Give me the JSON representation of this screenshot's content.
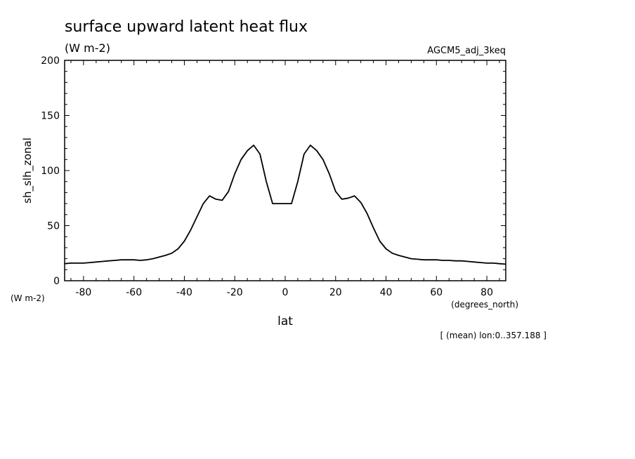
{
  "chart_data": {
    "type": "line",
    "title": "surface upward latent heat flux",
    "subtitle": "(W m-2)",
    "dataset": "AGCM5_adj_3keq",
    "ylabel": "sh_slh_zonal",
    "yunits": "(W m-2)",
    "xlabel": "lat",
    "xunits": "(degrees_north)",
    "footnote": "[ (mean) lon:0..357.188 ]",
    "xlim": [
      -87.5,
      87.5
    ],
    "ylim": [
      0,
      200
    ],
    "x_ticks": [
      -80,
      -60,
      -40,
      -20,
      0,
      20,
      40,
      60,
      80
    ],
    "x_tick_labels": [
      "-80",
      "-60",
      "-40",
      "-20",
      "0",
      "20",
      "40",
      "60",
      "80"
    ],
    "y_ticks": [
      0,
      50,
      100,
      150,
      200
    ],
    "y_tick_labels": [
      "0",
      "50",
      "100",
      "150",
      "200"
    ],
    "grid": false,
    "series": [
      {
        "x": [
          -87.5,
          -85,
          -82.5,
          -80,
          -77.5,
          -75,
          -72.5,
          -70,
          -67.5,
          -65,
          -62.5,
          -60,
          -57.5,
          -55,
          -52.5,
          -50,
          -47.5,
          -45,
          -42.5,
          -40,
          -37.5,
          -35,
          -32.5,
          -30,
          -27.5,
          -25,
          -22.5,
          -20,
          -17.5,
          -15,
          -12.5,
          -10,
          -7.5,
          -5,
          -2.5,
          0,
          2.5,
          5,
          7.5,
          10,
          12.5,
          15,
          17.5,
          20,
          22.5,
          25,
          27.5,
          30,
          32.5,
          35,
          37.5,
          40,
          42.5,
          45,
          47.5,
          50,
          52.5,
          55,
          57.5,
          60,
          62.5,
          65,
          67.5,
          70,
          72.5,
          75,
          77.5,
          80,
          82.5,
          85,
          87.5
        ],
        "y": [
          15.5,
          16,
          16,
          16,
          16.5,
          17,
          17.5,
          18,
          18.5,
          19,
          19,
          19,
          18.5,
          19,
          20,
          21.5,
          23,
          25,
          29,
          36,
          46,
          58,
          70,
          77,
          74,
          73,
          81,
          97,
          110,
          118,
          123,
          115,
          90,
          70,
          70,
          70,
          70,
          90,
          115,
          123,
          118,
          110,
          97,
          81,
          74,
          75,
          77,
          71,
          61,
          48,
          36,
          29,
          25,
          23,
          21.5,
          20,
          19.5,
          19,
          19,
          19,
          18.5,
          18.5,
          18,
          18,
          17.5,
          17,
          16.5,
          16,
          16,
          15.5,
          15
        ]
      }
    ]
  }
}
